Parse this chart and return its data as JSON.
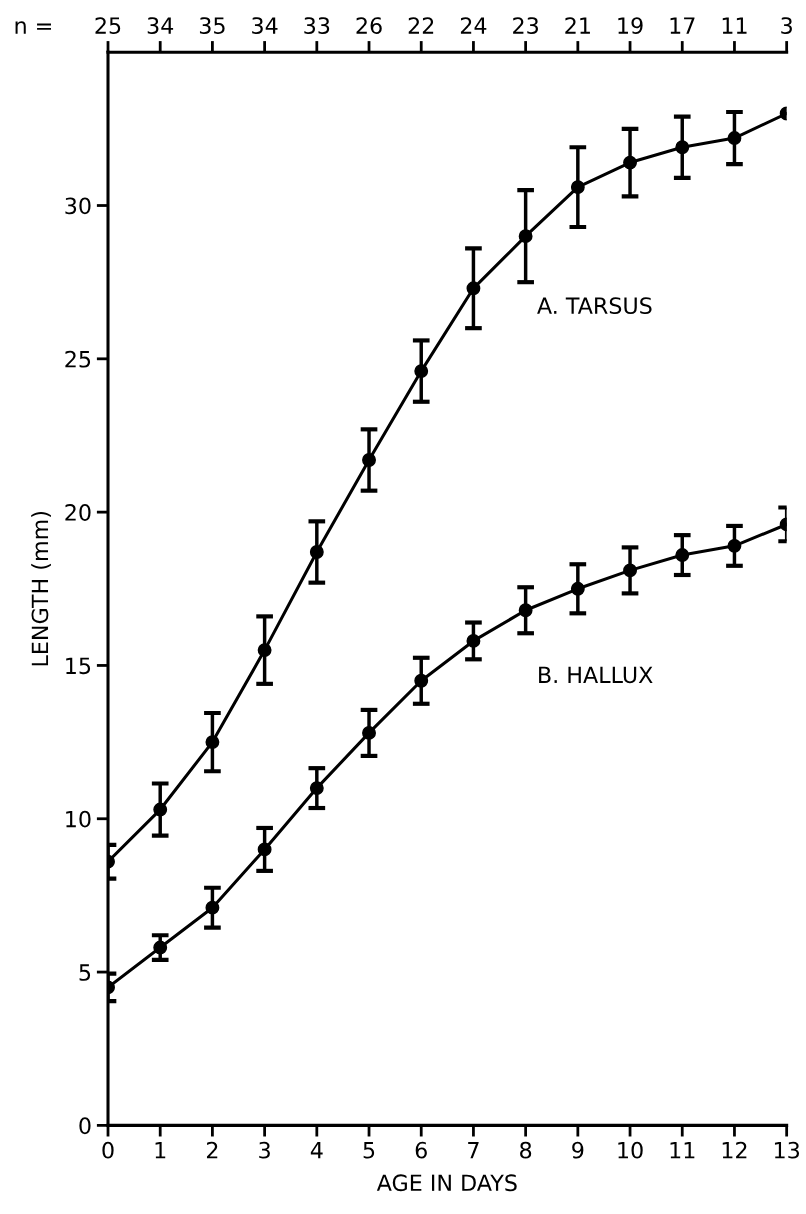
{
  "chart_data": {
    "type": "line",
    "xlabel": "AGE IN DAYS",
    "ylabel": "LENGTH (mm)",
    "x": [
      0,
      1,
      2,
      3,
      4,
      5,
      6,
      7,
      8,
      9,
      10,
      11,
      12,
      13
    ],
    "series": [
      {
        "name": "A. TARSUS",
        "color": "#000000",
        "values": [
          8.6,
          10.3,
          12.5,
          15.5,
          18.7,
          21.7,
          24.6,
          27.3,
          29.0,
          30.6,
          31.4,
          31.9,
          32.2,
          33.0
        ],
        "errors": [
          0.55,
          0.85,
          0.95,
          1.1,
          1.0,
          1.0,
          1.0,
          1.3,
          1.5,
          1.3,
          1.1,
          1.0,
          0.85,
          null
        ]
      },
      {
        "name": "B. HALLUX",
        "color": "#000000",
        "values": [
          4.5,
          5.8,
          7.1,
          9.0,
          11.0,
          12.8,
          14.5,
          15.8,
          16.8,
          17.5,
          18.1,
          18.6,
          18.9,
          19.6
        ],
        "errors": [
          0.45,
          0.4,
          0.65,
          0.7,
          0.65,
          0.75,
          0.75,
          0.6,
          0.75,
          0.8,
          0.75,
          0.65,
          0.65,
          0.55
        ]
      }
    ],
    "xlim": [
      0,
      13
    ],
    "xticks": [
      0,
      1,
      2,
      3,
      4,
      5,
      6,
      7,
      8,
      9,
      10,
      11,
      12,
      13
    ],
    "ylim": [
      0,
      35
    ],
    "yticks": [
      0,
      5,
      10,
      15,
      20,
      25,
      30
    ],
    "annotations": [
      "n =",
      "25",
      "34",
      "35",
      "34",
      "33",
      "26",
      "22",
      "24",
      "23",
      "21",
      "19",
      "17",
      "11",
      "3"
    ],
    "marker": "circle",
    "line_style": "solid",
    "grid": false,
    "legend": false
  }
}
